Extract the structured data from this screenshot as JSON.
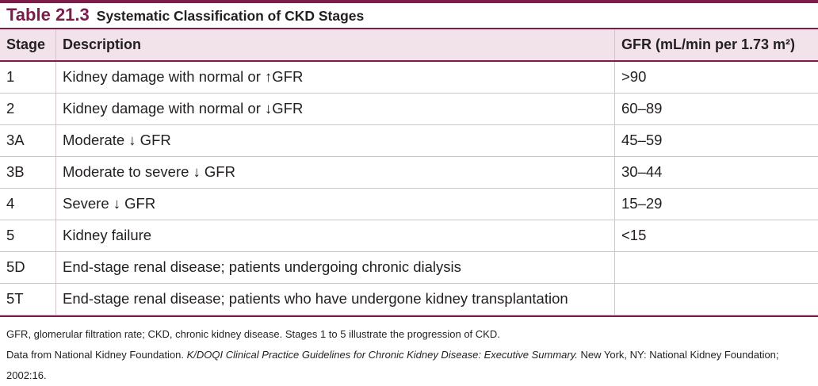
{
  "caption": {
    "number": "Table 21.3",
    "title": "Systematic Classification of CKD Stages"
  },
  "columns": {
    "stage": "Stage",
    "description": "Description",
    "gfr": "GFR (mL/min per 1.73 m²)"
  },
  "rows": [
    {
      "stage": "1",
      "description": "Kidney damage with normal or ↑GFR",
      "gfr": ">90"
    },
    {
      "stage": "2",
      "description": "Kidney damage with normal or ↓GFR",
      "gfr": "60–89"
    },
    {
      "stage": "3A",
      "description": "Moderate ↓ GFR",
      "gfr": "45–59"
    },
    {
      "stage": "3B",
      "description": "Moderate to severe ↓ GFR",
      "gfr": "30–44"
    },
    {
      "stage": "4",
      "description": "Severe ↓ GFR",
      "gfr": "15–29"
    },
    {
      "stage": "5",
      "description": "Kidney failure",
      "gfr": "<15"
    },
    {
      "stage": "5D",
      "description": "End-stage renal disease; patients undergoing chronic dialysis",
      "gfr": ""
    },
    {
      "stage": "5T",
      "description": "End-stage renal disease; patients who have undergone kidney transplantation",
      "gfr": ""
    }
  ],
  "notes": {
    "abbreviations": "GFR, glomerular filtration rate; CKD, chronic kidney disease. Stages 1 to 5 illustrate the progression of CKD.",
    "source_prefix": "Data from National Kidney Foundation. ",
    "source_title": "K/DOQI Clinical Practice Guidelines for Chronic Kidney Disease: Executive Summary.",
    "source_suffix": " New York, NY: National Kidney Foundation; 2002:16."
  },
  "colors": {
    "accent": "#7c1c4b",
    "header_bg": "#f2e3ea",
    "row_rule": "#d8c0cc"
  }
}
